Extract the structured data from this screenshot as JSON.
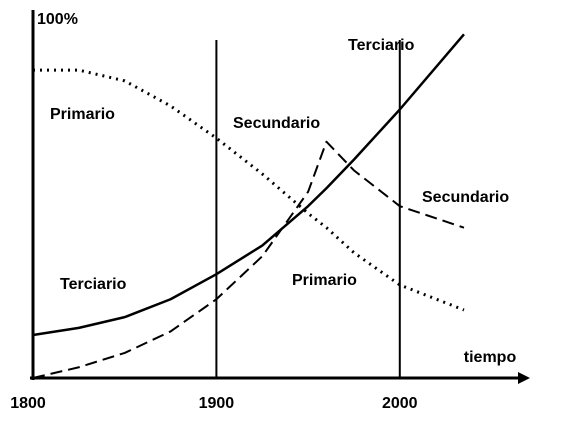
{
  "chart_data": {
    "type": "line",
    "x": [
      1800,
      1825,
      1850,
      1875,
      1900,
      1925,
      1950,
      1960,
      1975,
      2000,
      2035
    ],
    "series": [
      {
        "name": "Primario",
        "color": "#000000",
        "style": "dotted",
        "values": [
          86,
          86,
          83,
          76,
          67,
          57,
          46,
          42,
          35,
          26,
          19
        ]
      },
      {
        "name": "Secundario",
        "color": "#000000",
        "style": "dashed",
        "values": [
          0,
          3,
          7,
          13,
          22,
          34,
          52,
          66,
          58,
          48,
          42
        ]
      },
      {
        "name": "Terciario",
        "color": "#000000",
        "style": "solid",
        "values": [
          12,
          14,
          17,
          22,
          29,
          37,
          48,
          53,
          61,
          75,
          96
        ]
      }
    ],
    "annotations": [
      "Secundario",
      "Primario",
      "Terciario"
    ],
    "x_label": "tiempo",
    "xlim": [
      1800,
      2071
    ],
    "xticks": [
      1800,
      1900,
      2000
    ],
    "ylim": [
      0,
      100
    ],
    "yticks": [
      {
        "value": 100,
        "label": "100%"
      }
    ],
    "grid": true
  }
}
